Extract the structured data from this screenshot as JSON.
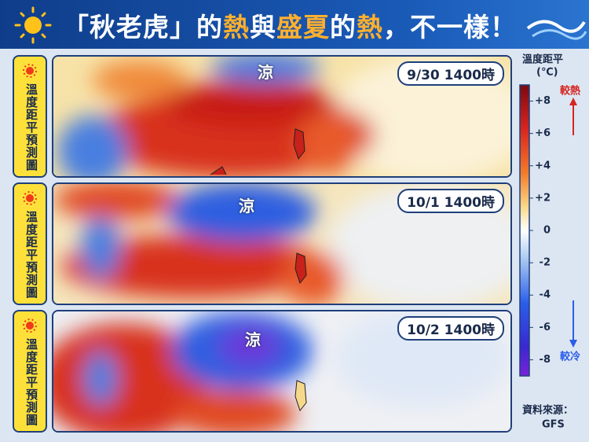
{
  "header": {
    "title_parts": [
      "「秋老虎」",
      "的",
      "熱",
      "與",
      "盛夏",
      "的",
      "熱",
      "，不一樣！"
    ]
  },
  "panels": [
    {
      "side_label": "溫度距平預測圖",
      "time": "9/30 1400時",
      "cool_label": "涼"
    },
    {
      "side_label": "溫度距平預測圖",
      "time": "10/1 1400時",
      "cool_label": "涼"
    },
    {
      "side_label": "溫度距平預測圖",
      "time": "10/2 1400時",
      "cool_label": "涼"
    }
  ],
  "colorbar": {
    "title": "溫度距平",
    "unit": "(℃)",
    "lim": [
      -9,
      9
    ],
    "ticks": [
      {
        "value": 8,
        "label": "+8"
      },
      {
        "value": 6,
        "label": "+6"
      },
      {
        "value": 4,
        "label": "+4"
      },
      {
        "value": 2,
        "label": "+2"
      },
      0,
      -2,
      -4,
      -6,
      -8
    ],
    "warm_label": "較熱",
    "cool_label": "較冷"
  },
  "source": {
    "label": "資料來源：",
    "name": "GFS"
  }
}
